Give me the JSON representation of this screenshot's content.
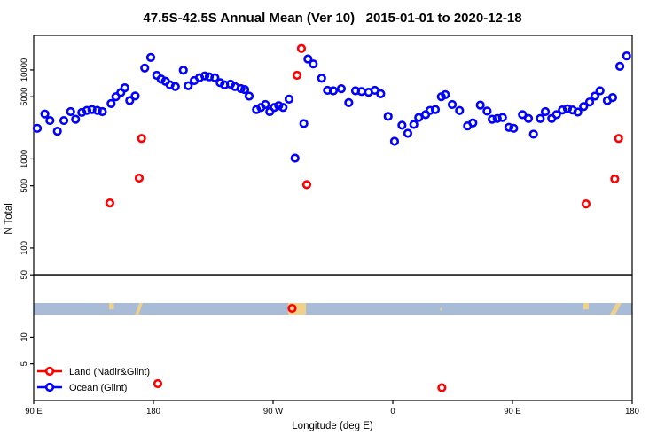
{
  "title": "47.5S-42.5S Annual Mean (Ver 10)   2015-01-01 to 2020-12-18",
  "axes": {
    "x": {
      "title": "Longitude (deg E)",
      "ticks": [
        {
          "deg": 90,
          "label": "90 E"
        },
        {
          "deg": 180,
          "label": "180"
        },
        {
          "deg": 270,
          "label": "90 W"
        },
        {
          "deg": 360,
          "label": "0"
        },
        {
          "deg": 450,
          "label": "90 E"
        },
        {
          "deg": 540,
          "label": "180"
        }
      ],
      "range_deg": [
        90,
        540
      ],
      "note_visible_labels_wrap_east_to_west": true
    },
    "y": {
      "title": "N Total",
      "scale": "log",
      "ticks": [
        {
          "v": 10000,
          "label": "10000"
        },
        {
          "v": 5000,
          "label": "5000"
        },
        {
          "v": 1000,
          "label": "1000"
        },
        {
          "v": 500,
          "label": "500"
        },
        {
          "v": 100,
          "label": "100"
        },
        {
          "v": 50,
          "label": "50"
        },
        {
          "v": 10,
          "label": "10"
        },
        {
          "v": 5,
          "label": "5"
        }
      ],
      "range": [
        1.94,
        24400
      ]
    }
  },
  "legend": {
    "items": [
      {
        "label": "Land (Nadir&Glint)",
        "color": "#ff0000"
      },
      {
        "label": "Ocean (Glint)",
        "color": "#0000ff"
      }
    ]
  },
  "colors": {
    "land": "#ff0000",
    "ocean": "#0000ff",
    "strip_ocean": "#a8bcd8",
    "strip_land": "#f0d189",
    "ref_line": "#3a3a3a",
    "axis": "#000000"
  },
  "chart_data": {
    "type": "scatter",
    "title": "47.5S-42.5S Annual Mean (Ver 10)   2015-01-01 to 2020-12-18",
    "xlabel": "Longitude (deg E)",
    "ylabel": "N Total",
    "x_units": "degrees east along axis starting at 90E (axis spans 450 deg, 90E-180 repeated)",
    "ylim": [
      1.94,
      24400
    ],
    "xlim_deg": [
      90,
      540
    ],
    "grid": "off",
    "legend_position": "bottom-left",
    "reference_line_y": 50,
    "series": [
      {
        "name": "Ocean (Glint)",
        "marker": "open-circle",
        "color": "#0000ff",
        "points": [
          [
            92.7,
            2210
          ],
          [
            98.4,
            3200
          ],
          [
            102.2,
            2700
          ],
          [
            107.8,
            2050
          ],
          [
            112.7,
            2700
          ],
          [
            117.8,
            3400
          ],
          [
            121.5,
            2790
          ],
          [
            126.2,
            3330
          ],
          [
            130,
            3510
          ],
          [
            133.8,
            3590
          ],
          [
            137.8,
            3510
          ],
          [
            141.6,
            3400
          ],
          [
            148.2,
            4190
          ],
          [
            151.8,
            5000
          ],
          [
            155.5,
            5570
          ],
          [
            158.5,
            6300
          ],
          [
            162.2,
            4530
          ],
          [
            166.3,
            5100
          ],
          [
            173.5,
            10500
          ],
          [
            178,
            13800
          ],
          [
            182.5,
            8700
          ],
          [
            185.8,
            7890
          ],
          [
            189.1,
            7460
          ],
          [
            192.5,
            6800
          ],
          [
            196.5,
            6500
          ],
          [
            202.5,
            9930
          ],
          [
            206.2,
            6650
          ],
          [
            210.7,
            7590
          ],
          [
            214.7,
            8180
          ],
          [
            218.7,
            8570
          ],
          [
            222,
            8370
          ],
          [
            226.2,
            8180
          ],
          [
            230.2,
            7190
          ],
          [
            233.5,
            6800
          ],
          [
            238,
            6920
          ],
          [
            241.3,
            6500
          ],
          [
            245.8,
            6170
          ],
          [
            248.7,
            6020
          ],
          [
            252,
            5080
          ],
          [
            257.5,
            3590
          ],
          [
            260.9,
            3790
          ],
          [
            264.2,
            4090
          ],
          [
            267.5,
            3400
          ],
          [
            270.9,
            3790
          ],
          [
            274.2,
            3970
          ],
          [
            277.5,
            3790
          ],
          [
            282,
            4700
          ],
          [
            286.5,
            1020
          ],
          [
            293.1,
            2500
          ],
          [
            296.2,
            13270
          ],
          [
            300.2,
            11670
          ],
          [
            306.5,
            8070
          ],
          [
            310.9,
            5900
          ],
          [
            315.3,
            5830
          ],
          [
            321.3,
            6150
          ],
          [
            326.9,
            4290
          ],
          [
            332,
            5830
          ],
          [
            336.5,
            5730
          ],
          [
            341.8,
            5620
          ],
          [
            346.5,
            5900
          ],
          [
            350.9,
            5390
          ],
          [
            356.5,
            3010
          ],
          [
            361.3,
            1580
          ],
          [
            366.9,
            2390
          ],
          [
            371.3,
            1940
          ],
          [
            375.8,
            2440
          ],
          [
            379.5,
            2920
          ],
          [
            384.7,
            3150
          ],
          [
            388,
            3510
          ],
          [
            392,
            3590
          ],
          [
            396.5,
            5000
          ],
          [
            399.5,
            5270
          ],
          [
            404.7,
            4090
          ],
          [
            410.2,
            3500
          ],
          [
            416.2,
            2350
          ],
          [
            420.2,
            2540
          ],
          [
            425.8,
            4030
          ],
          [
            430.9,
            3450
          ],
          [
            434.7,
            2790
          ],
          [
            438.5,
            2850
          ],
          [
            442.5,
            2920
          ],
          [
            447.3,
            2265
          ],
          [
            450.9,
            2210
          ],
          [
            457.5,
            3150
          ],
          [
            462,
            2850
          ],
          [
            465.8,
            1900
          ],
          [
            470.9,
            2850
          ],
          [
            474.7,
            3400
          ],
          [
            479.5,
            2850
          ],
          [
            483.1,
            3150
          ],
          [
            487.5,
            3550
          ],
          [
            491.3,
            3670
          ],
          [
            495.1,
            3550
          ],
          [
            499.1,
            3360
          ],
          [
            503.5,
            3880
          ],
          [
            508,
            4360
          ],
          [
            512,
            5080
          ],
          [
            515.8,
            5830
          ],
          [
            521.3,
            4530
          ],
          [
            525.3,
            4890
          ],
          [
            530.7,
            10970
          ],
          [
            535.8,
            14360
          ]
        ]
      },
      {
        "name": "Land (Nadir&Glint)",
        "marker": "open-circle",
        "color": "#ff0000",
        "points": [
          [
            147.3,
            320
          ],
          [
            169.3,
            610
          ],
          [
            171.1,
            1700
          ],
          [
            183.3,
            3
          ],
          [
            284.3,
            21
          ],
          [
            288,
            8700
          ],
          [
            291.3,
            17400
          ],
          [
            295.3,
            515
          ],
          [
            396.9,
            2.7
          ],
          [
            505.3,
            313
          ],
          [
            526.9,
            597
          ],
          [
            529.8,
            1700
          ]
        ]
      }
    ],
    "map_strip": {
      "description": "horizontal map band of the 47.5S-42.5S latitude zone: ocean blue with tan land patches",
      "land_patches_deg": [
        {
          "from": 146.7,
          "to": 150.3,
          "shape": "upper"
        },
        {
          "from": 166.3,
          "to": 172.0,
          "shape": "diag"
        },
        {
          "from": 281.3,
          "to": 294.7,
          "shape": "full"
        },
        {
          "from": 395.7,
          "to": 396.9,
          "shape": "speck"
        },
        {
          "from": 503.3,
          "to": 507.3,
          "shape": "upper"
        },
        {
          "from": 523.3,
          "to": 532.0,
          "shape": "diag"
        }
      ]
    }
  }
}
